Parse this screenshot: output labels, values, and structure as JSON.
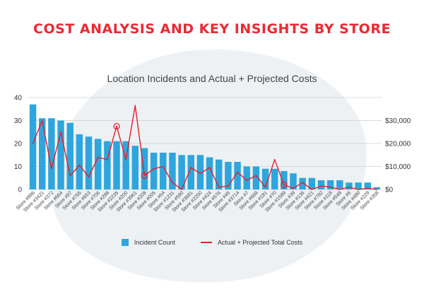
{
  "header": {
    "title": "COST ANALYSIS AND KEY INSIGHTS BY STORE"
  },
  "colors": {
    "title": "#ea2a32",
    "bars": "#2ea6dd",
    "line": "#e3202b",
    "highlight": "#e3202b"
  },
  "chart_data": {
    "type": "bar",
    "title": "Location Incidents and Actual + Projected Costs",
    "categories": [
      "Store #896",
      "Store #3421",
      "Store #372",
      "Store #664",
      "Store #97",
      "Store #765",
      "Store #653",
      "Store #706",
      "Store #298",
      "Store #2235",
      "Store #200",
      "Store #3961",
      "Store #208",
      "Store #005",
      "Store #54",
      "Store #1231",
      "Store #590",
      "Store #3681",
      "Store #2250",
      "Store #424",
      "Store #576",
      "Store #45",
      "Store #3714",
      "Store #7",
      "Store #669",
      "Store #181",
      "Store #70",
      "Store #1589",
      "Store #39",
      "Store #136",
      "Store #421",
      "Store #782",
      "Store #118",
      "Store #548",
      "Store #6",
      "Store #490",
      "Store #229",
      "Store #358"
    ],
    "series": [
      {
        "name": "Incident Count",
        "type": "bar",
        "axis": "left",
        "values": [
          37,
          31,
          31,
          30,
          29,
          24,
          23,
          22,
          21,
          21,
          21,
          19,
          18,
          16,
          16,
          16,
          15,
          15,
          15,
          14,
          13,
          12,
          12,
          10,
          10,
          9,
          9,
          8,
          7,
          5,
          5,
          4,
          4,
          4,
          3,
          3,
          3,
          1
        ]
      },
      {
        "name": "Actual + Projected Total Costs",
        "type": "line",
        "axis": "right",
        "values": [
          20000,
          30000,
          9000,
          25000,
          6000,
          10500,
          5500,
          14000,
          13000,
          27500,
          13000,
          36500,
          6000,
          9000,
          10000,
          3000,
          0,
          9500,
          7000,
          9500,
          1000,
          1500,
          7500,
          4000,
          6000,
          1000,
          13000,
          2000,
          500,
          3000,
          0,
          1500,
          1000,
          0,
          1000,
          0,
          500,
          0
        ]
      }
    ],
    "highlighted": [
      "Store #2235",
      "Store #208",
      "Store #1589"
    ],
    "left_axis": {
      "ticks": [
        0,
        10,
        20,
        30,
        40
      ],
      "ylim": [
        0,
        40
      ]
    },
    "right_axis": {
      "ticks": [
        "$0",
        "$10,000",
        "$20,000",
        "$30,000"
      ],
      "ylim": [
        0,
        40000
      ]
    },
    "grid": true,
    "legend_position": "bottom"
  }
}
